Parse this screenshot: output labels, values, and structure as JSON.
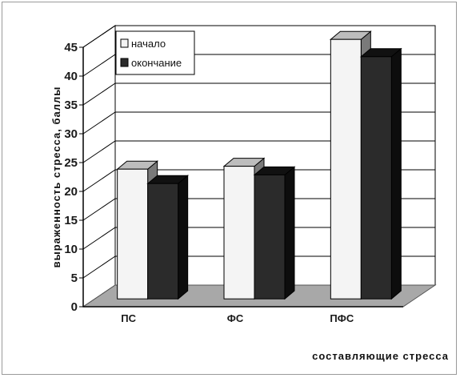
{
  "chart_data": {
    "type": "bar",
    "title": "",
    "categories": [
      "ПС",
      "ФС",
      "ПФС"
    ],
    "series": [
      {
        "name": "начало",
        "values": [
          22.5,
          23,
          45
        ],
        "color": "#f4f4f4"
      },
      {
        "name": "окончание",
        "values": [
          20,
          21.5,
          42
        ],
        "color": "#2b2b2b"
      }
    ],
    "ylim": [
      0,
      45
    ],
    "yticks": [
      0,
      5,
      10,
      15,
      20,
      25,
      30,
      35,
      40,
      45
    ],
    "ylabel": "выраженность стресса, баллы",
    "xlabel": "составляющие стресса",
    "grid": true,
    "legend_position": "top-left",
    "style": "3d-clustered-columns",
    "floor_color": "#a8a8a8",
    "wall_color": "#ffffff"
  }
}
